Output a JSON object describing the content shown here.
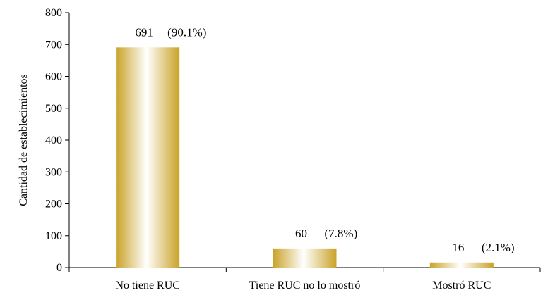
{
  "chart_data": {
    "type": "bar",
    "title": "",
    "xlabel": "",
    "ylabel": "Cantidad de establecimientos",
    "ylim": [
      0,
      800
    ],
    "yticks": [
      0,
      100,
      200,
      300,
      400,
      500,
      600,
      700,
      800
    ],
    "categories": [
      "No tiene RUC",
      "Tiene RUC no lo mostró",
      "Mostró RUC"
    ],
    "values": [
      691,
      60,
      16
    ],
    "value_labels": [
      "691",
      "60",
      "16"
    ],
    "percent_labels": [
      "(90.1%)",
      "(7.8%)",
      "(2.1%)"
    ],
    "grid": false,
    "legend": "none",
    "bar_color": "#c9a227"
  }
}
